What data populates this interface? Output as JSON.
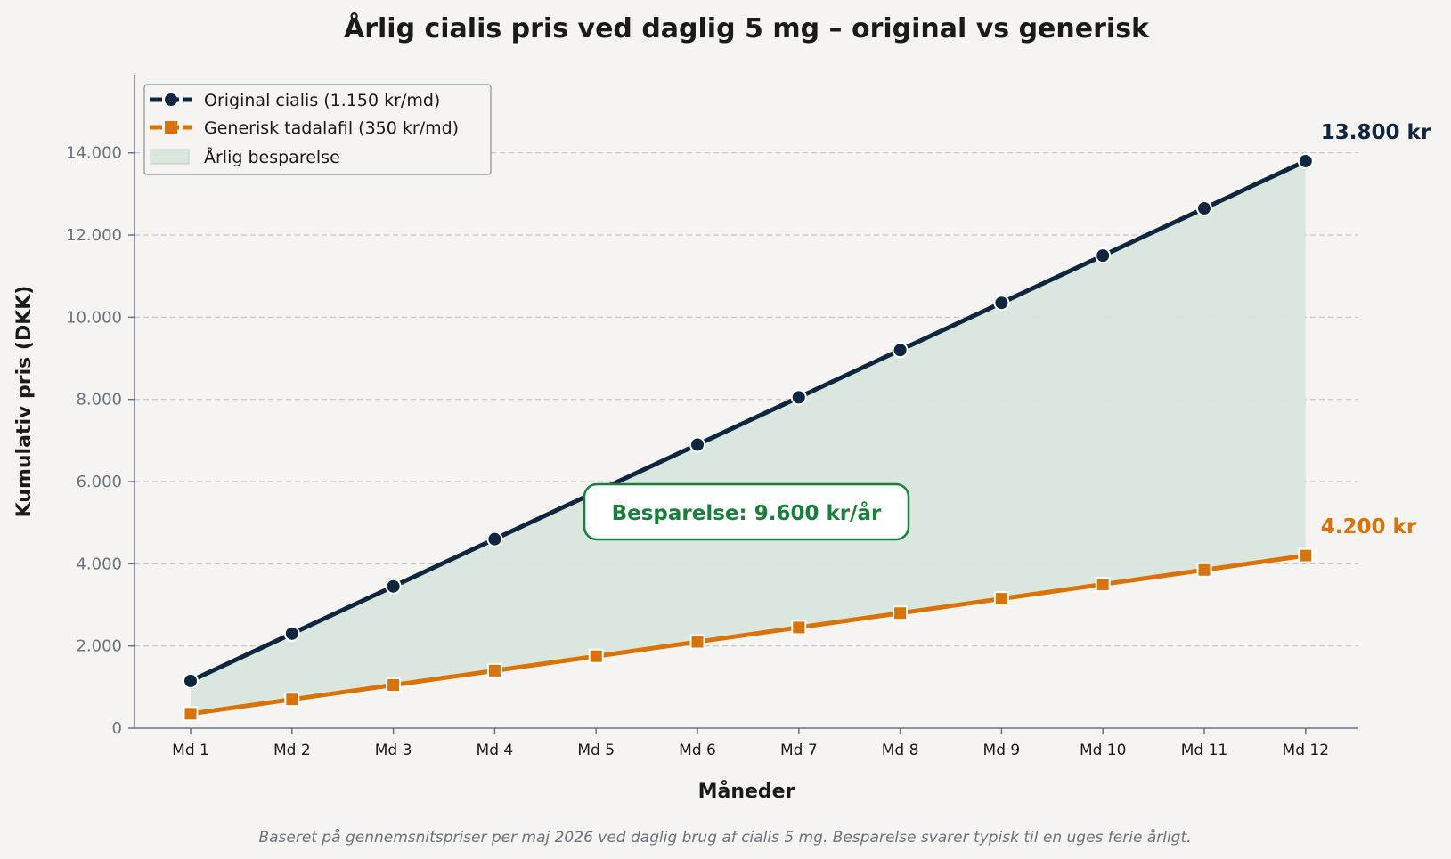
{
  "colors": {
    "original": "#0f2640",
    "generic": "#d97308",
    "savings_fill": "#d8e6dc",
    "savings_accent": "#1a7f3c",
    "background": "#f5f4f0"
  },
  "chart_data": {
    "type": "line",
    "title": "Årlig cialis pris ved daglig 5 mg – original vs generisk",
    "xlabel": "Måneder",
    "ylabel": "Kumulativ pris (DKK)",
    "categories": [
      "Md 1",
      "Md 2",
      "Md 3",
      "Md 4",
      "Md 5",
      "Md 6",
      "Md 7",
      "Md 8",
      "Md 9",
      "Md 10",
      "Md 11",
      "Md 12"
    ],
    "yticks": [
      0,
      2000,
      4000,
      6000,
      8000,
      10000,
      12000,
      14000
    ],
    "ytick_labels": [
      "0",
      "2.000",
      "4.000",
      "6.000",
      "8.000",
      "10.000",
      "12.000",
      "14.000"
    ],
    "ylim": [
      0,
      15900
    ],
    "grid": "horizontal dashed",
    "legend_position": "top-left",
    "series": [
      {
        "name": "Original cialis (1.150 kr/md)",
        "marker": "circle",
        "values": [
          1150,
          2300,
          3450,
          4600,
          5750,
          6900,
          8050,
          9200,
          10350,
          11500,
          12650,
          13800
        ],
        "end_label": "13.800 kr"
      },
      {
        "name": "Generisk tadalafil (350 kr/md)",
        "marker": "square",
        "values": [
          350,
          700,
          1050,
          1400,
          1750,
          2100,
          2450,
          2800,
          3150,
          3500,
          3850,
          4200
        ],
        "end_label": "4.200 kr"
      }
    ],
    "fill_between": {
      "name": "Årlig besparelse"
    },
    "annotation": "Besparelse: 9.600 kr/år",
    "footnote": "Baseret på gennemsnitspriser per maj 2026 ved daglig brug af cialis 5 mg. Besparelse svarer typisk til en uges ferie årligt."
  }
}
